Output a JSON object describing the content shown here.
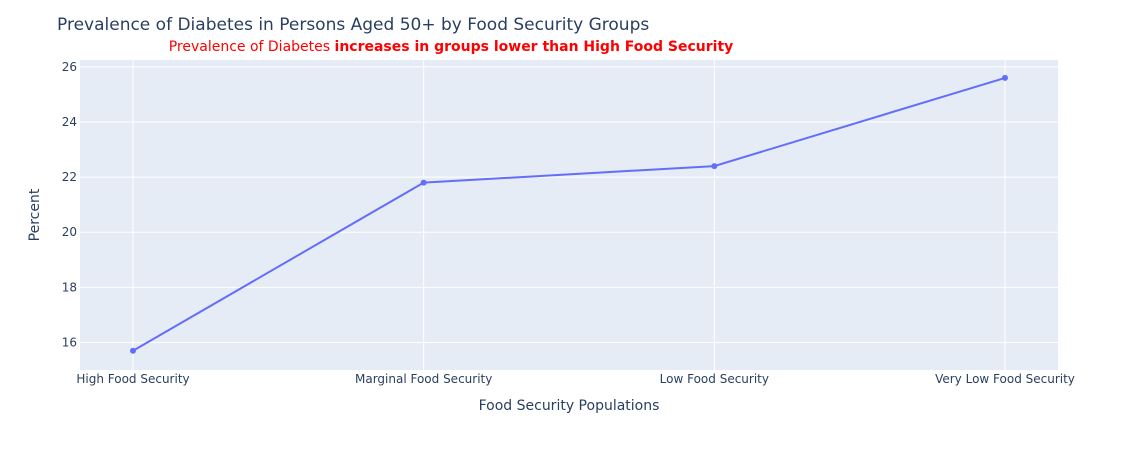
{
  "chart_data": {
    "type": "line",
    "title": "Prevalence of Diabetes in Persons Aged 50+ by Food Security Groups",
    "subtitle_plain": "Prevalence of Diabetes ",
    "subtitle_bold": "increases in groups lower than High Food Security",
    "xlabel": "Food Security Populations",
    "ylabel": "Percent",
    "categories": [
      "High Food Security",
      "Marginal Food Security",
      "Low Food Security",
      "Very Low Food Security"
    ],
    "values": [
      15.7,
      21.8,
      22.4,
      25.6
    ],
    "ylim": [
      15,
      26.25
    ],
    "yticks": [
      16,
      18,
      20,
      22,
      24,
      26
    ],
    "grid": true,
    "colors": {
      "line": "#636efa",
      "plot_bg": "#e5ecf6",
      "grid": "#ffffff",
      "subtitle": "#ff0000"
    }
  }
}
